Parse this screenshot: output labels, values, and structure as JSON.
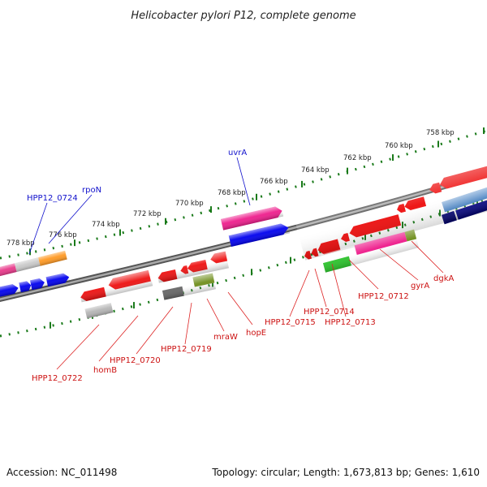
{
  "title": "Helicobacter pylori P12, complete genome",
  "footer": {
    "accession": "Accession: NC_011498",
    "summary": "Topology: circular; Length: 1,673,813 bp; Genes: 1,610"
  },
  "colors": {
    "label_forward": "#1111cc",
    "label_reverse": "#cc1111",
    "leader_forward": "#1111cc",
    "leader_reverse": "#dd2222",
    "backbone": "#777777",
    "ticks": "#1a7a1a"
  },
  "scale_ticks": [
    "778 kbp",
    "776 kbp",
    "774 kbp",
    "772 kbp",
    "770 kbp",
    "768 kbp",
    "766 kbp",
    "764 kbp",
    "762 kbp",
    "760 kbp",
    "758 kbp"
  ],
  "gene_labels": {
    "forward": [
      "HPP12_0724",
      "rpoN",
      "uvrA"
    ],
    "reverse": [
      "HPP12_0722",
      "homB",
      "HPP12_0720",
      "HPP12_0719",
      "mraW",
      "hopE",
      "HPP12_0715",
      "HPP12_0714",
      "HPP12_0713",
      "HPP12_0712",
      "gyrA",
      "dgkA"
    ]
  }
}
